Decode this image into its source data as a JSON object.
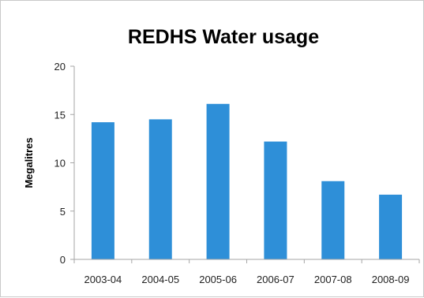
{
  "chart_data": {
    "type": "bar",
    "title": "REDHS Water usage",
    "xlabel": "",
    "ylabel": "Megalitres",
    "categories": [
      "2003-04",
      "2004-05",
      "2005-06",
      "2006-07",
      "2007-08",
      "2008-09"
    ],
    "values": [
      14.2,
      14.5,
      16.1,
      12.2,
      8.1,
      6.7
    ],
    "ylim": [
      0,
      20
    ],
    "yticks": [
      0,
      5,
      10,
      15,
      20
    ],
    "grid": false,
    "legend": "none",
    "bar_color": "#2e8fd8"
  }
}
